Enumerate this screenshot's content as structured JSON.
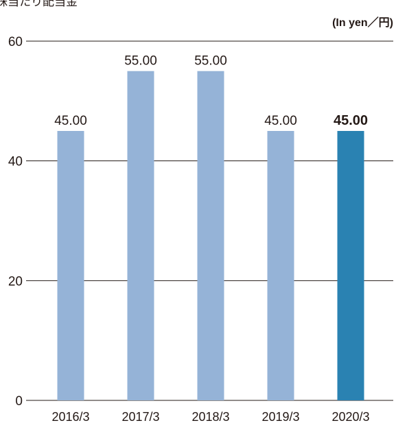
{
  "page_title_fragment": "株当たり配当金",
  "chart_data": {
    "type": "bar",
    "unit_label": "(In yen／円)",
    "categories": [
      "2016/3",
      "2017/3",
      "2018/3",
      "2019/3",
      "2020/3"
    ],
    "values": [
      45,
      55,
      55,
      45,
      45
    ],
    "value_labels": [
      "45.00",
      "55.00",
      "55.00",
      "45.00",
      "45.00"
    ],
    "highlight_index": 4,
    "ylim": [
      0,
      60
    ],
    "yticks": [
      0,
      20,
      40,
      60
    ],
    "ytick_labels": [
      "0",
      "20",
      "40",
      "60"
    ],
    "grid": true,
    "colors": {
      "bar": "#95b3d7",
      "highlight": "#2a82b2",
      "grid": "#231815",
      "text": "#231815"
    }
  }
}
